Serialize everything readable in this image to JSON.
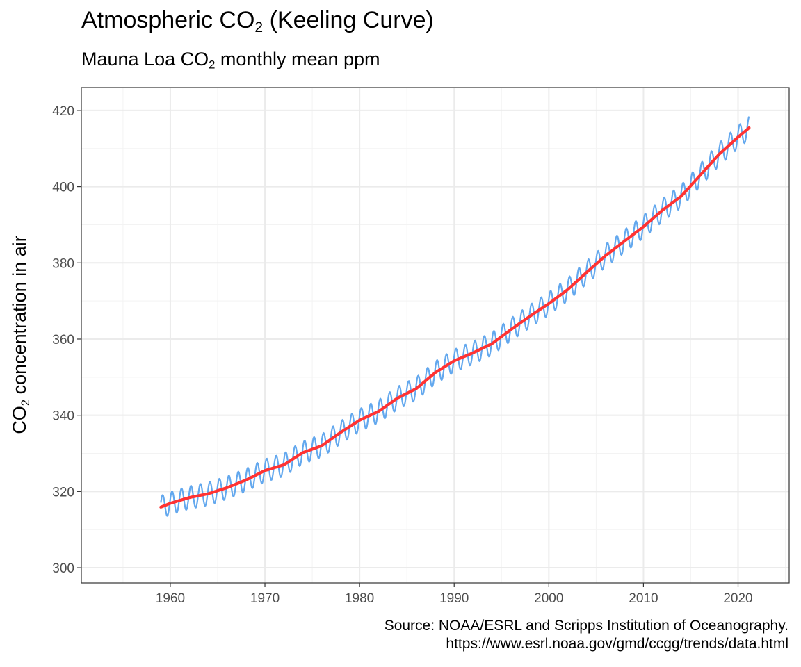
{
  "title": {
    "pre": "Atmospheric CO",
    "sub": "2",
    "post": " (Keeling Curve)"
  },
  "subtitle": {
    "pre": "Mauna Loa CO",
    "sub": "2",
    "post": " monthly mean ppm"
  },
  "caption": {
    "line1": "Source: NOAA/ESRL and Scripps Institution of Oceanography.",
    "line2": "https://www.esrl.noaa.gov/gmd/ccgg/trends/data.html"
  },
  "colors": {
    "monthly": "#63a8ee",
    "trend": "#ff3333",
    "grid_major": "#ebebeb",
    "grid_minor": "#f3f3f3",
    "panel_border": "#333333"
  },
  "chart_data": {
    "type": "line",
    "title": "Atmospheric CO2 (Keeling Curve)",
    "subtitle": "Mauna Loa CO2 monthly mean ppm",
    "xlabel": "",
    "ylabel": {
      "pre": "CO",
      "sub": "2",
      "post": " concentration in air"
    },
    "xlim": [
      1950.6,
      2025.4
    ],
    "ylim": [
      296,
      426
    ],
    "x_ticks": [
      1960,
      1970,
      1980,
      1990,
      2000,
      2010,
      2020
    ],
    "y_ticks": [
      300,
      320,
      340,
      360,
      380,
      400,
      420
    ],
    "grid": true,
    "legend": "none",
    "seasonal_amplitude_ppm": 3.0,
    "series": [
      {
        "role": "monthly",
        "color": "#63a8ee",
        "description": "monthly mean (trend plus seasonal cycle)",
        "x_range": [
          1959.0,
          2021.2
        ]
      },
      {
        "role": "trend",
        "color": "#ff3333",
        "x": [
          1959.0,
          1960.0,
          1962.0,
          1964.0,
          1966.0,
          1968.0,
          1970.0,
          1972.0,
          1974.0,
          1976.0,
          1978.0,
          1980.0,
          1982.0,
          1984.0,
          1986.0,
          1988.0,
          1990.0,
          1992.0,
          1994.0,
          1996.0,
          1998.0,
          2000.0,
          2002.0,
          2004.0,
          2006.0,
          2008.0,
          2010.0,
          2012.0,
          2014.0,
          2016.0,
          2018.0,
          2020.0,
          2021.2
        ],
        "y": [
          315.9,
          316.9,
          318.4,
          319.4,
          321.0,
          323.0,
          325.5,
          327.0,
          330.2,
          332.0,
          335.5,
          338.7,
          341.0,
          344.5,
          347.0,
          351.2,
          354.3,
          356.4,
          358.8,
          362.5,
          366.0,
          369.3,
          373.0,
          377.5,
          381.9,
          385.7,
          389.5,
          393.8,
          397.5,
          403.0,
          408.5,
          413.0,
          415.5
        ]
      }
    ]
  }
}
